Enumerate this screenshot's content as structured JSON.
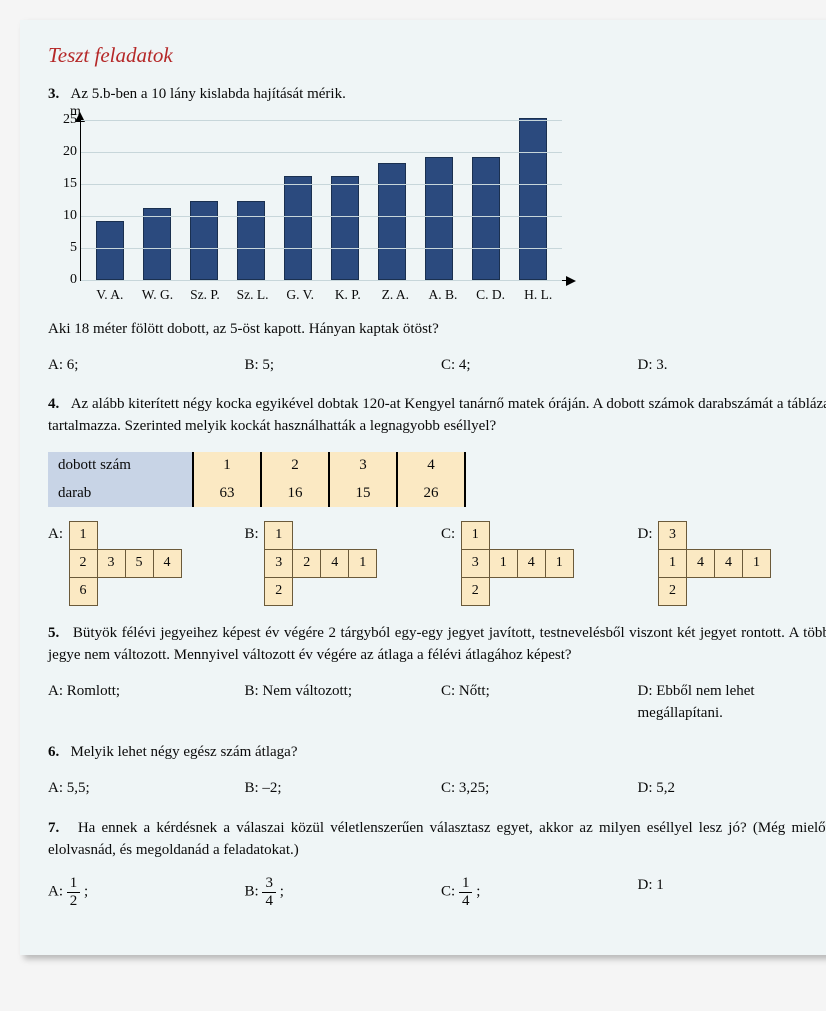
{
  "title": "Teszt feladatok",
  "p3": {
    "num": "3.",
    "text": "Az 5.b-ben a 10 lány kislabda hajítását mérik.",
    "question": "Aki 18 méter fölött dobott, az 5-öst kapott. Hányan kaptak ötöst?",
    "answers": {
      "a": "A: 6;",
      "b": "B: 5;",
      "c": "C: 4;",
      "d": "D: 3."
    }
  },
  "chart": {
    "type": "bar",
    "unit": "m",
    "ylim": [
      0,
      25
    ],
    "ytick_step": 5,
    "yticks": [
      "0",
      "5",
      "10",
      "15",
      "20",
      "25"
    ],
    "categories": [
      "V. A.",
      "W. G.",
      "Sz. P.",
      "Sz. L.",
      "G. V.",
      "K. P.",
      "Z. A.",
      "A. B.",
      "C. D.",
      "H. L."
    ],
    "values": [
      9,
      11,
      12,
      12,
      16,
      16,
      18,
      19,
      19,
      25
    ],
    "bar_color": "#2b4a7e",
    "bar_border": "#1a3050",
    "grid_color": "#c7d6da",
    "background_color": "#eff5f6"
  },
  "p4": {
    "num": "4.",
    "text": "Az alább kiterített négy kocka egyikével dobtak 120-at Kengyel tanárnő matek óráján. A dobott számok darabszámát a táblázat tartalmazza.  Szerinted melyik kockát használhatták a legnagyobb eséllyel?",
    "table": {
      "row1_label": "dobott szám",
      "row2_label": "darab",
      "row1": [
        "1",
        "2",
        "3",
        "4"
      ],
      "row2": [
        "63",
        "16",
        "15",
        "26"
      ]
    },
    "nets": {
      "a": {
        "label": "A:",
        "grid": [
          "1",
          "",
          "",
          "",
          "2",
          "3",
          "5",
          "4",
          "6",
          "",
          "",
          ""
        ]
      },
      "b": {
        "label": "B:",
        "grid": [
          "1",
          "",
          "",
          "",
          "3",
          "2",
          "4",
          "1",
          "2",
          "",
          "",
          ""
        ]
      },
      "c": {
        "label": "C:",
        "grid": [
          "1",
          "",
          "",
          "",
          "3",
          "1",
          "4",
          "1",
          "2",
          "",
          "",
          ""
        ]
      },
      "d": {
        "label": "D:",
        "grid": [
          "3",
          "",
          "",
          "",
          "1",
          "4",
          "4",
          "1",
          "2",
          "",
          "",
          ""
        ]
      }
    }
  },
  "p5": {
    "num": "5.",
    "text": "Bütyök félévi jegyeihez képest év végére 2 tárgyból egy-egy jegyet javított, testnevelésből viszont két jegyet rontott. A többi jegye nem változott. Mennyivel változott év végére az átlaga a félévi átlagához képest?",
    "answers": {
      "a": "A: Romlott;",
      "b": "B: Nem változott;",
      "c": "C:  Nőtt;",
      "d": "D: Ebből nem lehet megállapítani."
    }
  },
  "p6": {
    "num": "6.",
    "text": "Melyik lehet négy egész szám átlaga?",
    "answers": {
      "a": "A: 5,5;",
      "b": "B: –2;",
      "c": "C: 3,25;",
      "d": "D: 5,2"
    }
  },
  "p7": {
    "num": "7.",
    "text": "Ha ennek a kérdésnek a válaszai közül véletlenszerűen választasz egyet, akkor az milyen eséllyel lesz jó? (Még mielőtt elolvasnád, és megoldanád a feladatokat.)",
    "answers": {
      "a": {
        "pre": "A: ",
        "num": "1",
        "den": "2",
        "post": " ;"
      },
      "b": {
        "pre": "B: ",
        "num": "3",
        "den": "4",
        "post": " ;"
      },
      "c": {
        "pre": "C: ",
        "num": "1",
        "den": "4",
        "post": " ;"
      },
      "d": "D: 1"
    }
  }
}
